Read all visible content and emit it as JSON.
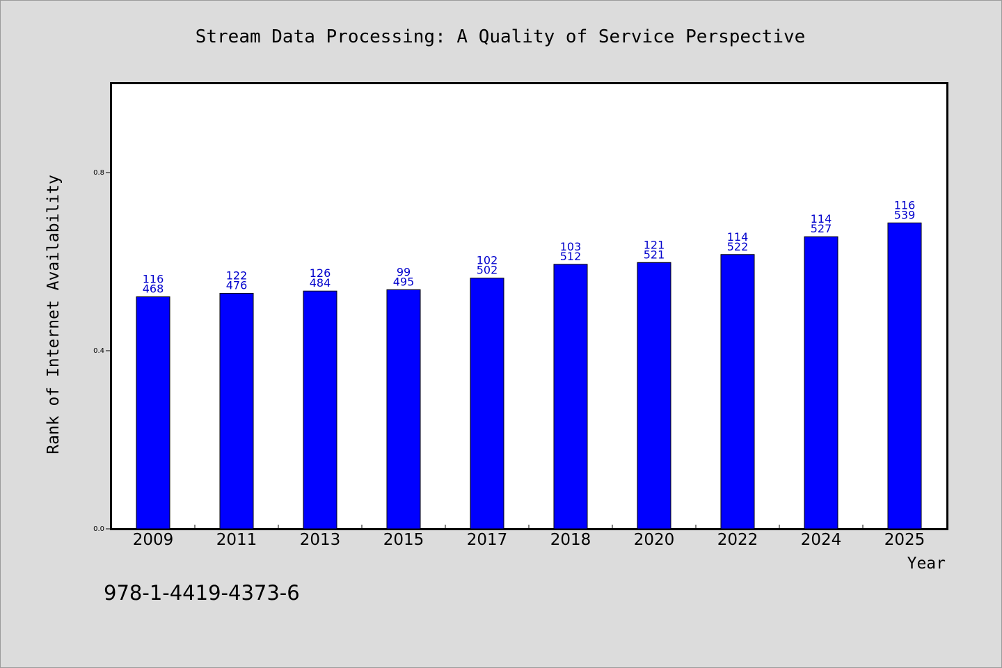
{
  "chart_data": {
    "type": "bar",
    "title": "Stream Data Processing: A Quality of Service Perspective",
    "xlabel": "Year",
    "ylabel": "Rank of Internet Availability",
    "categories": [
      "2009",
      "2011",
      "2013",
      "2015",
      "2017",
      "2018",
      "2020",
      "2022",
      "2024",
      "2025"
    ],
    "values": [
      0.521,
      0.529,
      0.534,
      0.537,
      0.563,
      0.594,
      0.598,
      0.616,
      0.656,
      0.687
    ],
    "label_top": [
      "116",
      "122",
      "126",
      "99",
      "102",
      "103",
      "121",
      "114",
      "114",
      "116"
    ],
    "label_bottom": [
      "468",
      "476",
      "484",
      "495",
      "502",
      "512",
      "521",
      "522",
      "527",
      "539"
    ],
    "ylim": [
      0.0,
      1.0
    ],
    "yticks": [
      "0.0",
      "0.4",
      "0.8"
    ],
    "bar_color": "#0000ff",
    "label_color": "#0000cc",
    "grid": false,
    "legend": "none"
  },
  "footer": {
    "isbn": "978-1-4419-4373-6"
  },
  "colors": {
    "page_background": "#dcdcdc",
    "plot_background": "#ffffff"
  }
}
